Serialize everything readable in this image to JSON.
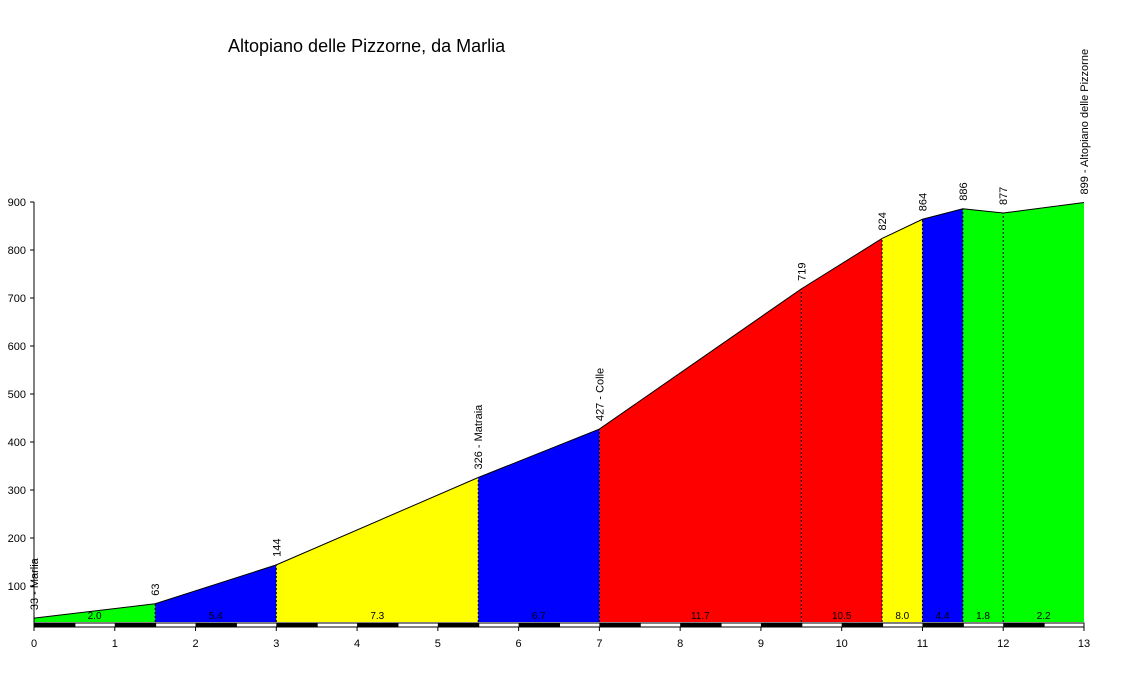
{
  "chart_data": {
    "type": "area",
    "title": "Altopiano delle Pizzorne, da Marlia",
    "xlabel": "",
    "ylabel": "",
    "xlim": [
      0,
      13
    ],
    "ylim": [
      25,
      900
    ],
    "x_ticks": [
      "0",
      "1",
      "2",
      "3",
      "4",
      "5",
      "6",
      "7",
      "8",
      "9",
      "10",
      "11",
      "12",
      "13"
    ],
    "y_ticks": [
      "100",
      "200",
      "300",
      "400",
      "500",
      "600",
      "700",
      "800",
      "900"
    ],
    "profile": [
      {
        "x": 0,
        "y": 33
      },
      {
        "x": 1.5,
        "y": 63
      },
      {
        "x": 3,
        "y": 144
      },
      {
        "x": 5.5,
        "y": 326
      },
      {
        "x": 7,
        "y": 427
      },
      {
        "x": 9.5,
        "y": 719
      },
      {
        "x": 10.5,
        "y": 824
      },
      {
        "x": 11,
        "y": 864
      },
      {
        "x": 11.5,
        "y": 886
      },
      {
        "x": 12,
        "y": 877
      },
      {
        "x": 13,
        "y": 899
      }
    ],
    "segments": [
      {
        "start": 0,
        "end": 1.5,
        "color": "#00ff00",
        "gradient": "2.0"
      },
      {
        "start": 1.5,
        "end": 3,
        "color": "#0000ff",
        "gradient": "5.4"
      },
      {
        "start": 3,
        "end": 5.5,
        "color": "#ffff00",
        "gradient": "7.3"
      },
      {
        "start": 5.5,
        "end": 7,
        "color": "#0000ff",
        "gradient": "6.7"
      },
      {
        "start": 7,
        "end": 9.5,
        "color": "#ff0000",
        "gradient": "11.7"
      },
      {
        "start": 9.5,
        "end": 10.5,
        "color": "#ff0000",
        "gradient": "10.5"
      },
      {
        "start": 10.5,
        "end": 11,
        "color": "#ffff00",
        "gradient": "8.0"
      },
      {
        "start": 11,
        "end": 11.5,
        "color": "#0000ff",
        "gradient": "4.4"
      },
      {
        "start": 11.5,
        "end": 12,
        "color": "#00ff00",
        "gradient": "1.8"
      },
      {
        "start": 12,
        "end": 13,
        "color": "#00ff00",
        "gradient": "2.2"
      }
    ],
    "point_labels": [
      {
        "x": 0,
        "y": 33,
        "text": "33 - Marlia"
      },
      {
        "x": 1.5,
        "y": 63,
        "text": "63"
      },
      {
        "x": 3,
        "y": 144,
        "text": "144"
      },
      {
        "x": 5.5,
        "y": 326,
        "text": "326 - Matraia"
      },
      {
        "x": 7,
        "y": 427,
        "text": "427 - Colle"
      },
      {
        "x": 9.5,
        "y": 719,
        "text": "719"
      },
      {
        "x": 10.5,
        "y": 824,
        "text": "824"
      },
      {
        "x": 11,
        "y": 864,
        "text": "864"
      },
      {
        "x": 11.5,
        "y": 886,
        "text": "886"
      },
      {
        "x": 12,
        "y": 877,
        "text": "877"
      },
      {
        "x": 13,
        "y": 899,
        "text": "899 - Altopiano delle Pizzorne"
      }
    ],
    "grid": false
  }
}
